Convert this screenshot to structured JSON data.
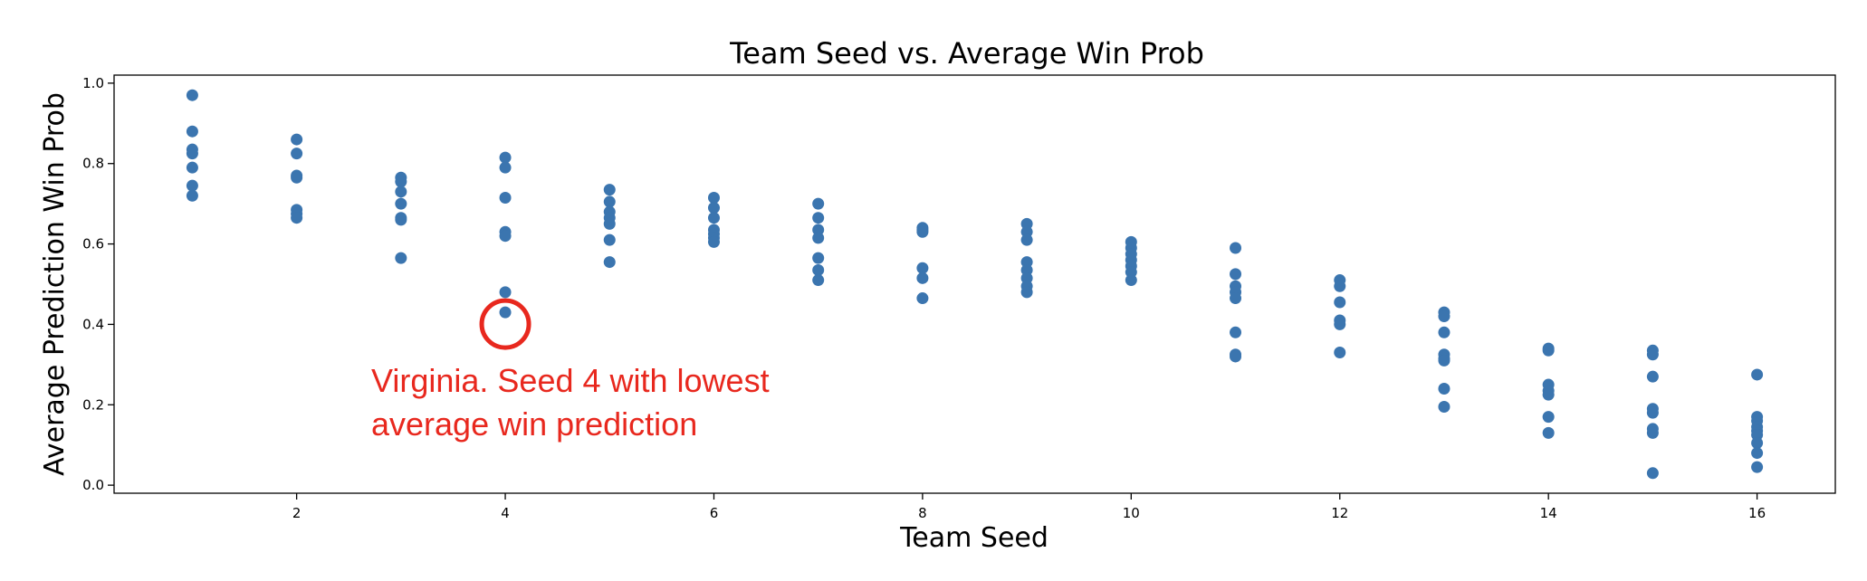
{
  "chart_data": {
    "type": "scatter",
    "title": "Team Seed vs. Average Win Prob",
    "xlabel": "Team Seed",
    "ylabel": "Average Prediction Win Prob",
    "xlim": [
      0.25,
      16.75
    ],
    "ylim": [
      -0.02,
      1.02
    ],
    "xticks": [
      2,
      4,
      6,
      8,
      10,
      12,
      14,
      16
    ],
    "yticks": [
      0.0,
      0.2,
      0.4,
      0.6,
      0.8,
      1.0
    ],
    "xtick_labels": [
      "2",
      "4",
      "6",
      "8",
      "10",
      "12",
      "14",
      "16"
    ],
    "ytick_labels": [
      "0.0",
      "0.2",
      "0.4",
      "0.6",
      "0.8",
      "1.0"
    ],
    "grid": false,
    "marker_color": "#3b75af",
    "points": [
      [
        1,
        0.97
      ],
      [
        1,
        0.88
      ],
      [
        1,
        0.835
      ],
      [
        1,
        0.825
      ],
      [
        1,
        0.79
      ],
      [
        1,
        0.745
      ],
      [
        1,
        0.72
      ],
      [
        2,
        0.86
      ],
      [
        2,
        0.825
      ],
      [
        2,
        0.77
      ],
      [
        2,
        0.765
      ],
      [
        2,
        0.685
      ],
      [
        2,
        0.675
      ],
      [
        2,
        0.665
      ],
      [
        3,
        0.765
      ],
      [
        3,
        0.755
      ],
      [
        3,
        0.73
      ],
      [
        3,
        0.7
      ],
      [
        3,
        0.665
      ],
      [
        3,
        0.66
      ],
      [
        3,
        0.565
      ],
      [
        4,
        0.815
      ],
      [
        4,
        0.79
      ],
      [
        4,
        0.715
      ],
      [
        4,
        0.63
      ],
      [
        4,
        0.62
      ],
      [
        4,
        0.48
      ],
      [
        4,
        0.43
      ],
      [
        5,
        0.735
      ],
      [
        5,
        0.705
      ],
      [
        5,
        0.68
      ],
      [
        5,
        0.665
      ],
      [
        5,
        0.65
      ],
      [
        5,
        0.61
      ],
      [
        5,
        0.555
      ],
      [
        6,
        0.715
      ],
      [
        6,
        0.69
      ],
      [
        6,
        0.665
      ],
      [
        6,
        0.635
      ],
      [
        6,
        0.625
      ],
      [
        6,
        0.615
      ],
      [
        6,
        0.605
      ],
      [
        7,
        0.7
      ],
      [
        7,
        0.665
      ],
      [
        7,
        0.635
      ],
      [
        7,
        0.615
      ],
      [
        7,
        0.565
      ],
      [
        7,
        0.535
      ],
      [
        7,
        0.51
      ],
      [
        8,
        0.64
      ],
      [
        8,
        0.635
      ],
      [
        8,
        0.63
      ],
      [
        8,
        0.54
      ],
      [
        8,
        0.515
      ],
      [
        8,
        0.465
      ],
      [
        9,
        0.65
      ],
      [
        9,
        0.63
      ],
      [
        9,
        0.61
      ],
      [
        9,
        0.555
      ],
      [
        9,
        0.535
      ],
      [
        9,
        0.515
      ],
      [
        9,
        0.495
      ],
      [
        9,
        0.48
      ],
      [
        10,
        0.605
      ],
      [
        10,
        0.59
      ],
      [
        10,
        0.575
      ],
      [
        10,
        0.56
      ],
      [
        10,
        0.545
      ],
      [
        10,
        0.53
      ],
      [
        10,
        0.51
      ],
      [
        11,
        0.59
      ],
      [
        11,
        0.525
      ],
      [
        11,
        0.495
      ],
      [
        11,
        0.48
      ],
      [
        11,
        0.465
      ],
      [
        11,
        0.38
      ],
      [
        11,
        0.325
      ],
      [
        11,
        0.32
      ],
      [
        12,
        0.51
      ],
      [
        12,
        0.495
      ],
      [
        12,
        0.455
      ],
      [
        12,
        0.41
      ],
      [
        12,
        0.4
      ],
      [
        12,
        0.33
      ],
      [
        13,
        0.43
      ],
      [
        13,
        0.42
      ],
      [
        13,
        0.38
      ],
      [
        13,
        0.325
      ],
      [
        13,
        0.315
      ],
      [
        13,
        0.31
      ],
      [
        13,
        0.24
      ],
      [
        13,
        0.195
      ],
      [
        14,
        0.34
      ],
      [
        14,
        0.335
      ],
      [
        14,
        0.25
      ],
      [
        14,
        0.235
      ],
      [
        14,
        0.225
      ],
      [
        14,
        0.17
      ],
      [
        14,
        0.13
      ],
      [
        15,
        0.335
      ],
      [
        15,
        0.325
      ],
      [
        15,
        0.27
      ],
      [
        15,
        0.19
      ],
      [
        15,
        0.18
      ],
      [
        15,
        0.14
      ],
      [
        15,
        0.13
      ],
      [
        15,
        0.03
      ],
      [
        16,
        0.275
      ],
      [
        16,
        0.17
      ],
      [
        16,
        0.16
      ],
      [
        16,
        0.145
      ],
      [
        16,
        0.135
      ],
      [
        16,
        0.125
      ],
      [
        16,
        0.105
      ],
      [
        16,
        0.08
      ],
      [
        16,
        0.045
      ]
    ],
    "annotation": {
      "text_lines": [
        "Virginia. Seed 4 with lowest",
        "average win prediction"
      ],
      "highlight_point": [
        4,
        0.43
      ],
      "color": "#e8281e"
    }
  }
}
